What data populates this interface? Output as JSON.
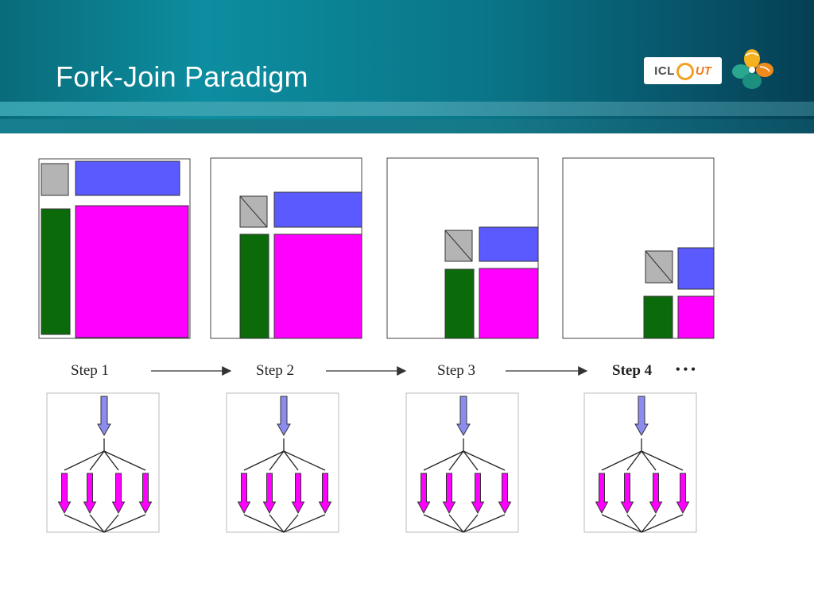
{
  "slide": {
    "title": "Fork-Join Paradigm"
  },
  "logo": {
    "left_text": "ICL",
    "right_text": "UT"
  },
  "steps": [
    {
      "label": "Step 1",
      "bold": false
    },
    {
      "label": "Step 2",
      "bold": false
    },
    {
      "label": "Step 3",
      "bold": false
    },
    {
      "label": "Step 4",
      "bold": true
    }
  ],
  "continuation": "• • •",
  "colors": {
    "diagonal_block": "#b4b4b4",
    "row_panel": "#5a5aff",
    "column_panel": "#0b6b0b",
    "trailing_matrix": "#ff00ff",
    "fork_arrow": "#8c8cf0",
    "join_arrows": "#ff00ff"
  }
}
